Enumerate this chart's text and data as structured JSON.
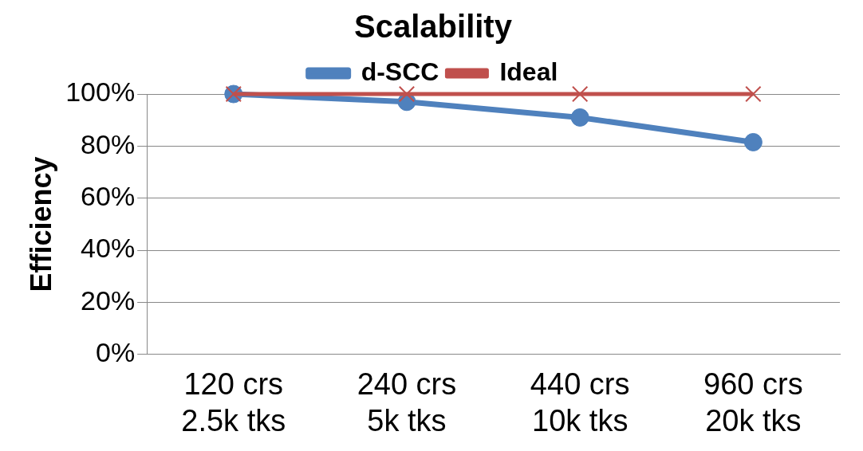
{
  "chart_data": {
    "type": "line",
    "title": "Scalability",
    "ylabel": "Efficiency",
    "categories": [
      "120 crs\n2.5k tks",
      "240 crs\n5k tks",
      "440 crs\n10k tks",
      "960 crs\n20k tks"
    ],
    "series": [
      {
        "name": "d-SCC",
        "color": "#4f81bd",
        "marker": "circle",
        "values": [
          100,
          97,
          91,
          81.5
        ]
      },
      {
        "name": "Ideal",
        "color": "#c0504d",
        "marker": "cross",
        "values": [
          100,
          100,
          100,
          100
        ]
      }
    ],
    "ylim": [
      0,
      100
    ],
    "yticks": [
      {
        "value": 0,
        "label": "0%"
      },
      {
        "value": 20,
        "label": "20%"
      },
      {
        "value": 40,
        "label": "40%"
      },
      {
        "value": 60,
        "label": "60%"
      },
      {
        "value": 80,
        "label": "80%"
      },
      {
        "value": 100,
        "label": "100%"
      }
    ],
    "grid": "y",
    "legend": "top"
  }
}
